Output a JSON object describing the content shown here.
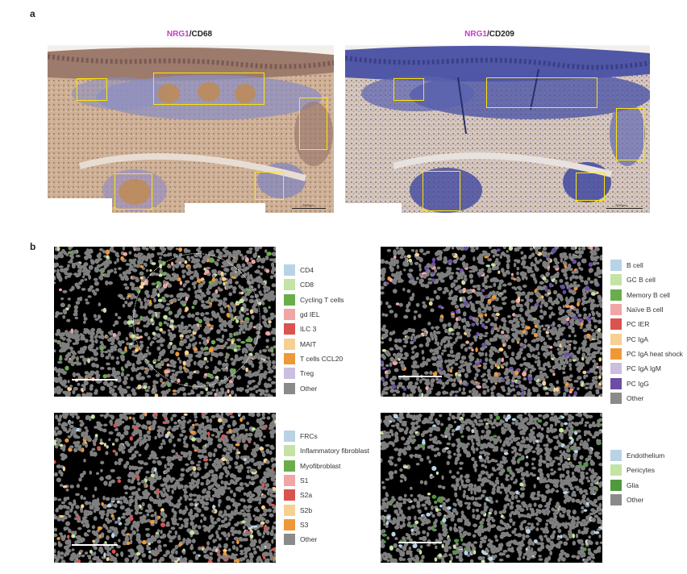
{
  "panel_a": {
    "label": "a",
    "left": {
      "marker": "NRG1",
      "rest": "/CD68",
      "scalebar": "2000µm"
    },
    "right": {
      "marker": "NRG1",
      "rest": "/CD209",
      "scalebar": "2000µm"
    }
  },
  "panel_b": {
    "label": "b",
    "tl": {
      "legend": [
        {
          "name": "CD4",
          "color": "#b8d3e6"
        },
        {
          "name": "CD8",
          "color": "#c4e3a4"
        },
        {
          "name": "Cycling T cells",
          "color": "#6aae4b"
        },
        {
          "name": "gd IEL",
          "color": "#f1a6a6"
        },
        {
          "name": "ILC 3",
          "color": "#d9534f"
        },
        {
          "name": "MAIT",
          "color": "#f6cf92"
        },
        {
          "name": "T cells CCL20",
          "color": "#ef9838"
        },
        {
          "name": "Treg",
          "color": "#ccbedf"
        },
        {
          "name": "Other",
          "color": "#8a8a8a"
        }
      ]
    },
    "tr": {
      "legend": [
        {
          "name": "B cell",
          "color": "#b8d3e6"
        },
        {
          "name": "GC B cell",
          "color": "#c4e3a4"
        },
        {
          "name": "Memory B cell",
          "color": "#6aae4b"
        },
        {
          "name": "Naïve B cell",
          "color": "#f1a6a6"
        },
        {
          "name": "PC IER",
          "color": "#d9534f"
        },
        {
          "name": "PC IgA",
          "color": "#f6cf92"
        },
        {
          "name": "PC IgA heat shock",
          "color": "#ef9838"
        },
        {
          "name": "PC IgA IgM",
          "color": "#ccbedf"
        },
        {
          "name": "PC IgG",
          "color": "#6b4ea6"
        },
        {
          "name": "Other",
          "color": "#8a8a8a"
        }
      ]
    },
    "bl": {
      "legend": [
        {
          "name": "FRCs",
          "color": "#b8d3e6"
        },
        {
          "name": "Inflammatory fibroblast",
          "color": "#c4e3a4"
        },
        {
          "name": "Myofibroblast",
          "color": "#6aae4b"
        },
        {
          "name": "S1",
          "color": "#f1a6a6"
        },
        {
          "name": "S2a",
          "color": "#d9534f"
        },
        {
          "name": "S2b",
          "color": "#f6cf92"
        },
        {
          "name": "S3",
          "color": "#ef9838"
        },
        {
          "name": "Other",
          "color": "#8a8a8a"
        }
      ]
    },
    "br": {
      "legend": [
        {
          "name": "Endothelium",
          "color": "#b8d3e6"
        },
        {
          "name": "Pericytes",
          "color": "#c4e3a4"
        },
        {
          "name": "Glia",
          "color": "#4f9a3c"
        },
        {
          "name": "Other",
          "color": "#8a8a8a"
        }
      ]
    }
  }
}
